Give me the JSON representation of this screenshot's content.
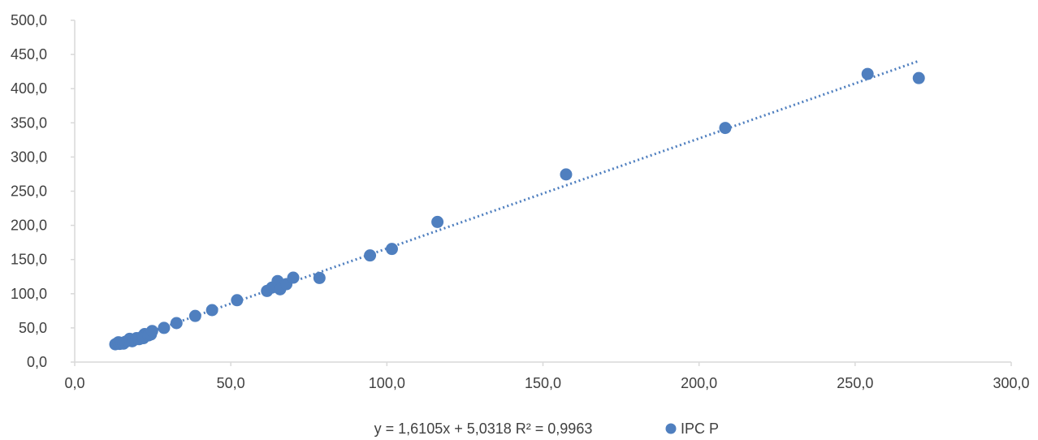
{
  "chart_data": {
    "type": "scatter",
    "series": [
      {
        "name": "IPC P",
        "color": "#4f7fbf",
        "points": [
          [
            13.0,
            26.0
          ],
          [
            13.6,
            27.5
          ],
          [
            14.0,
            29.0
          ],
          [
            14.4,
            26.5
          ],
          [
            15.0,
            28.0
          ],
          [
            15.6,
            27.0
          ],
          [
            16.2,
            29.5
          ],
          [
            17.0,
            31.0
          ],
          [
            17.6,
            34.0
          ],
          [
            18.4,
            30.5
          ],
          [
            19.0,
            32.5
          ],
          [
            19.8,
            35.0
          ],
          [
            20.6,
            33.5
          ],
          [
            21.6,
            37.0
          ],
          [
            22.4,
            41.0
          ],
          [
            22.0,
            35.0
          ],
          [
            23.6,
            39.0
          ],
          [
            24.4,
            40.5
          ],
          [
            24.8,
            45.5
          ],
          [
            28.6,
            50.0
          ],
          [
            32.6,
            57.0
          ],
          [
            38.6,
            67.5
          ],
          [
            44.0,
            76.0
          ],
          [
            52.0,
            90.5
          ],
          [
            61.6,
            104.0
          ],
          [
            63.2,
            109.0
          ],
          [
            65.0,
            118.5
          ],
          [
            65.8,
            106.5
          ],
          [
            67.8,
            114.0
          ],
          [
            70.0,
            123.5
          ],
          [
            78.4,
            123.0
          ],
          [
            94.6,
            156.0
          ],
          [
            101.6,
            165.5
          ],
          [
            116.2,
            205.0
          ],
          [
            157.4,
            274.5
          ],
          [
            208.4,
            342.5
          ],
          [
            254.0,
            421.5
          ],
          [
            270.4,
            415.5
          ]
        ]
      }
    ],
    "trendline": {
      "type": "linear",
      "slope": 1.6105,
      "intercept": 5.0318,
      "x_range": [
        13.0,
        270.0
      ],
      "style": "dotted",
      "color": "#4f7fbf"
    },
    "xlim": [
      0,
      300
    ],
    "ylim": [
      0,
      500
    ],
    "xticks": [
      0,
      50,
      100,
      150,
      200,
      250,
      300
    ],
    "yticks": [
      0,
      50,
      100,
      150,
      200,
      250,
      300,
      350,
      400,
      450,
      500
    ],
    "xtick_labels": [
      "0,0",
      "50,0",
      "100,0",
      "150,0",
      "200,0",
      "250,0",
      "300,0"
    ],
    "ytick_labels": [
      "0,0",
      "50,0",
      "100,0",
      "150,0",
      "200,0",
      "250,0",
      "300,0",
      "350,0",
      "400,0",
      "450,0",
      "500,0"
    ],
    "grid": false,
    "legend": {
      "placement": "bottom",
      "trend_label": "y = 1,6105x + 5,0318  R² = 0,9963",
      "series_label": "IPC P"
    },
    "axis_color": "#d9d9d9",
    "text_color": "#404040"
  }
}
